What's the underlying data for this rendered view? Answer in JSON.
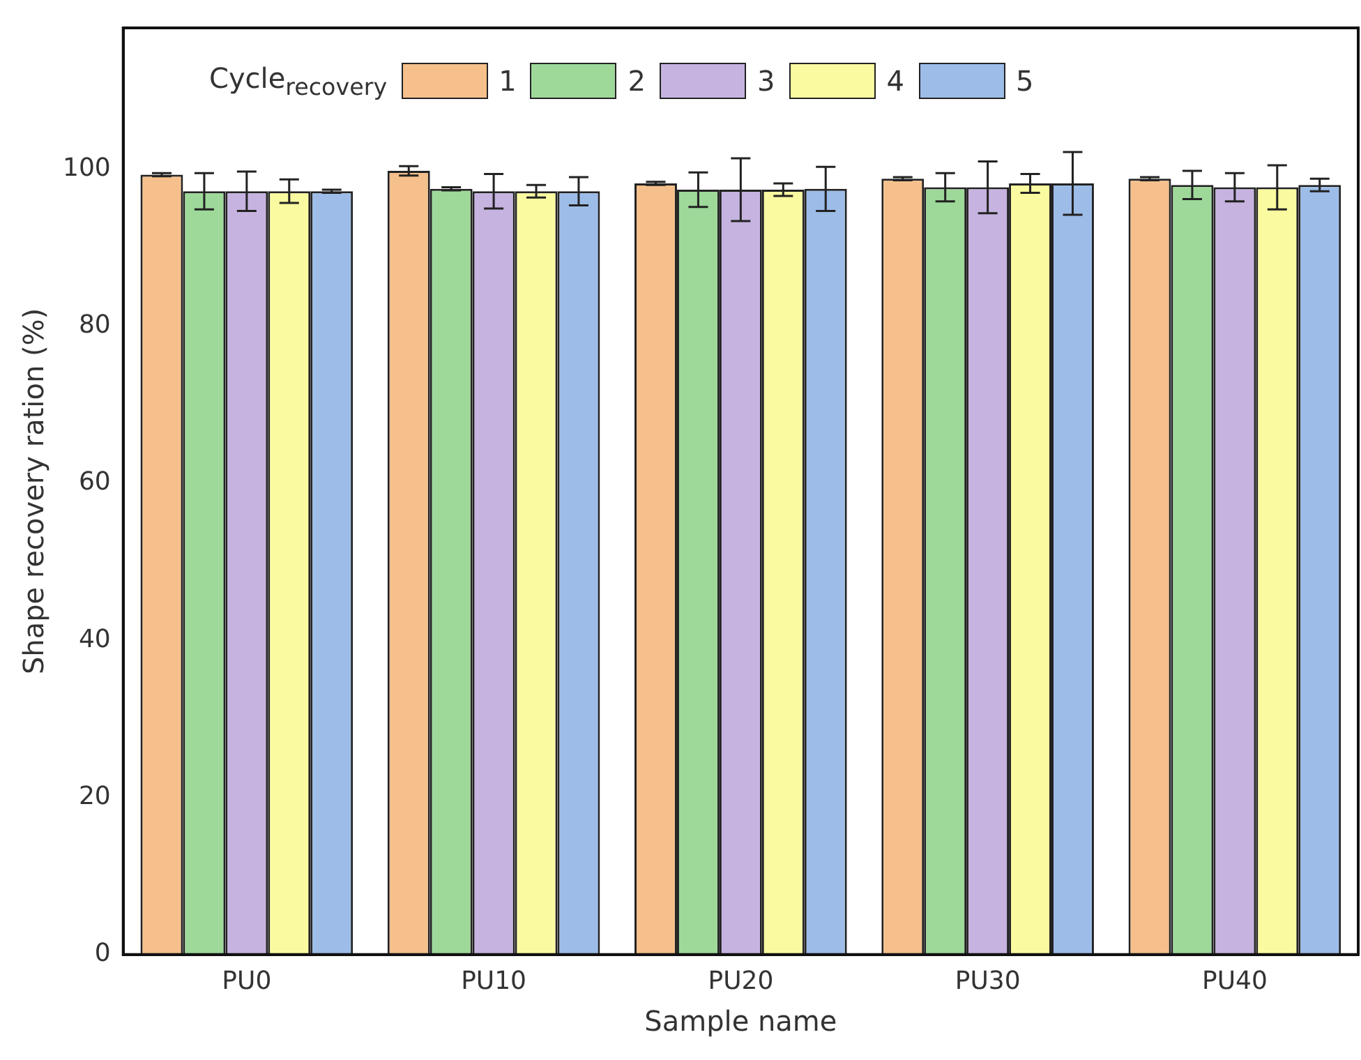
{
  "chart_data": {
    "type": "bar",
    "xlabel": "Sample name",
    "ylabel": "Shape recovery ration (%)",
    "legend_title": "Cycle$_{recovery}$",
    "legend": "top",
    "grid": false,
    "categories": [
      "PU0",
      "PU10",
      "PU20",
      "PU30",
      "PU40"
    ],
    "ylim": [
      0,
      118
    ],
    "yticks": [
      0,
      20,
      40,
      60,
      80,
      100
    ],
    "series": [
      {
        "name": "1",
        "color": "#f5c08c",
        "values": [
          99.3,
          99.8,
          98.2,
          98.8,
          98.8
        ],
        "errors": [
          0.2,
          0.6,
          0.2,
          0.2,
          0.2
        ]
      },
      {
        "name": "2",
        "color": "#9ed99a",
        "values": [
          97.2,
          97.5,
          97.4,
          97.7,
          98.0
        ],
        "errors": [
          2.3,
          0.2,
          2.2,
          1.8,
          1.8
        ]
      },
      {
        "name": "3",
        "color": "#c6b3e0",
        "values": [
          97.2,
          97.2,
          97.4,
          97.7,
          97.7
        ],
        "errors": [
          2.5,
          2.2,
          4.0,
          3.3,
          1.8
        ]
      },
      {
        "name": "4",
        "color": "#fafaa0",
        "values": [
          97.2,
          97.2,
          97.4,
          98.2,
          97.7
        ],
        "errors": [
          1.5,
          0.8,
          0.8,
          1.2,
          2.8
        ]
      },
      {
        "name": "5",
        "color": "#9dbde8",
        "values": [
          97.2,
          97.2,
          97.5,
          98.2,
          98.0
        ],
        "errors": [
          0.2,
          1.8,
          2.8,
          4.0,
          0.8
        ]
      }
    ]
  }
}
